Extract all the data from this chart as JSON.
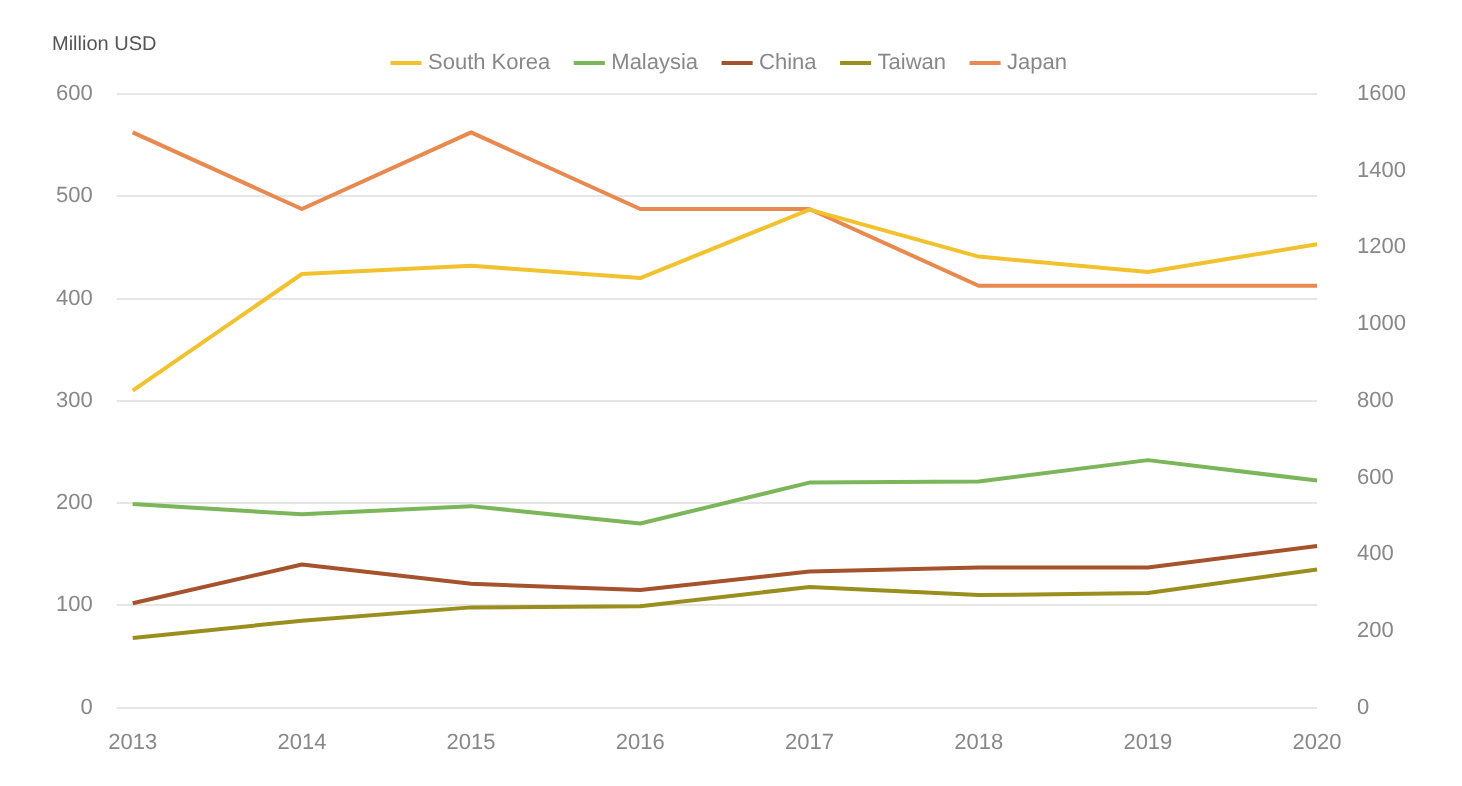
{
  "chart_data": {
    "type": "line",
    "ylabel": "Million USD",
    "categories": [
      "2013",
      "2014",
      "2015",
      "2016",
      "2017",
      "2018",
      "2019",
      "2020"
    ],
    "series": [
      {
        "name": "South Korea",
        "color": "#f2c12e",
        "values": [
          310,
          424,
          432,
          420,
          487,
          441,
          426,
          453
        ]
      },
      {
        "name": "Malaysia",
        "color": "#7cb65a",
        "values": [
          199,
          189,
          197,
          180,
          220,
          221,
          242,
          222
        ]
      },
      {
        "name": "China",
        "color": "#a5522d",
        "values": [
          102,
          140,
          121,
          115,
          133,
          137,
          137,
          158
        ]
      },
      {
        "name": "Taiwan",
        "color": "#9a8f1e",
        "values": [
          68,
          85,
          98,
          99,
          118,
          110,
          112,
          135
        ]
      },
      {
        "name": "Japan",
        "color": "#e8894f",
        "axis": "y2",
        "values": [
          1500,
          1300,
          1500,
          1300,
          1300,
          1100,
          1100,
          1100
        ]
      }
    ],
    "ylim": [
      0,
      600
    ],
    "yticks": [
      0,
      100,
      200,
      300,
      400,
      500,
      600
    ],
    "y2lim": [
      0,
      1600
    ],
    "y2ticks": [
      0,
      200,
      400,
      600,
      800,
      1000,
      1200,
      1400,
      1600
    ],
    "grid": "y",
    "legend": "top",
    "marker": "none",
    "line_style": "solid"
  }
}
